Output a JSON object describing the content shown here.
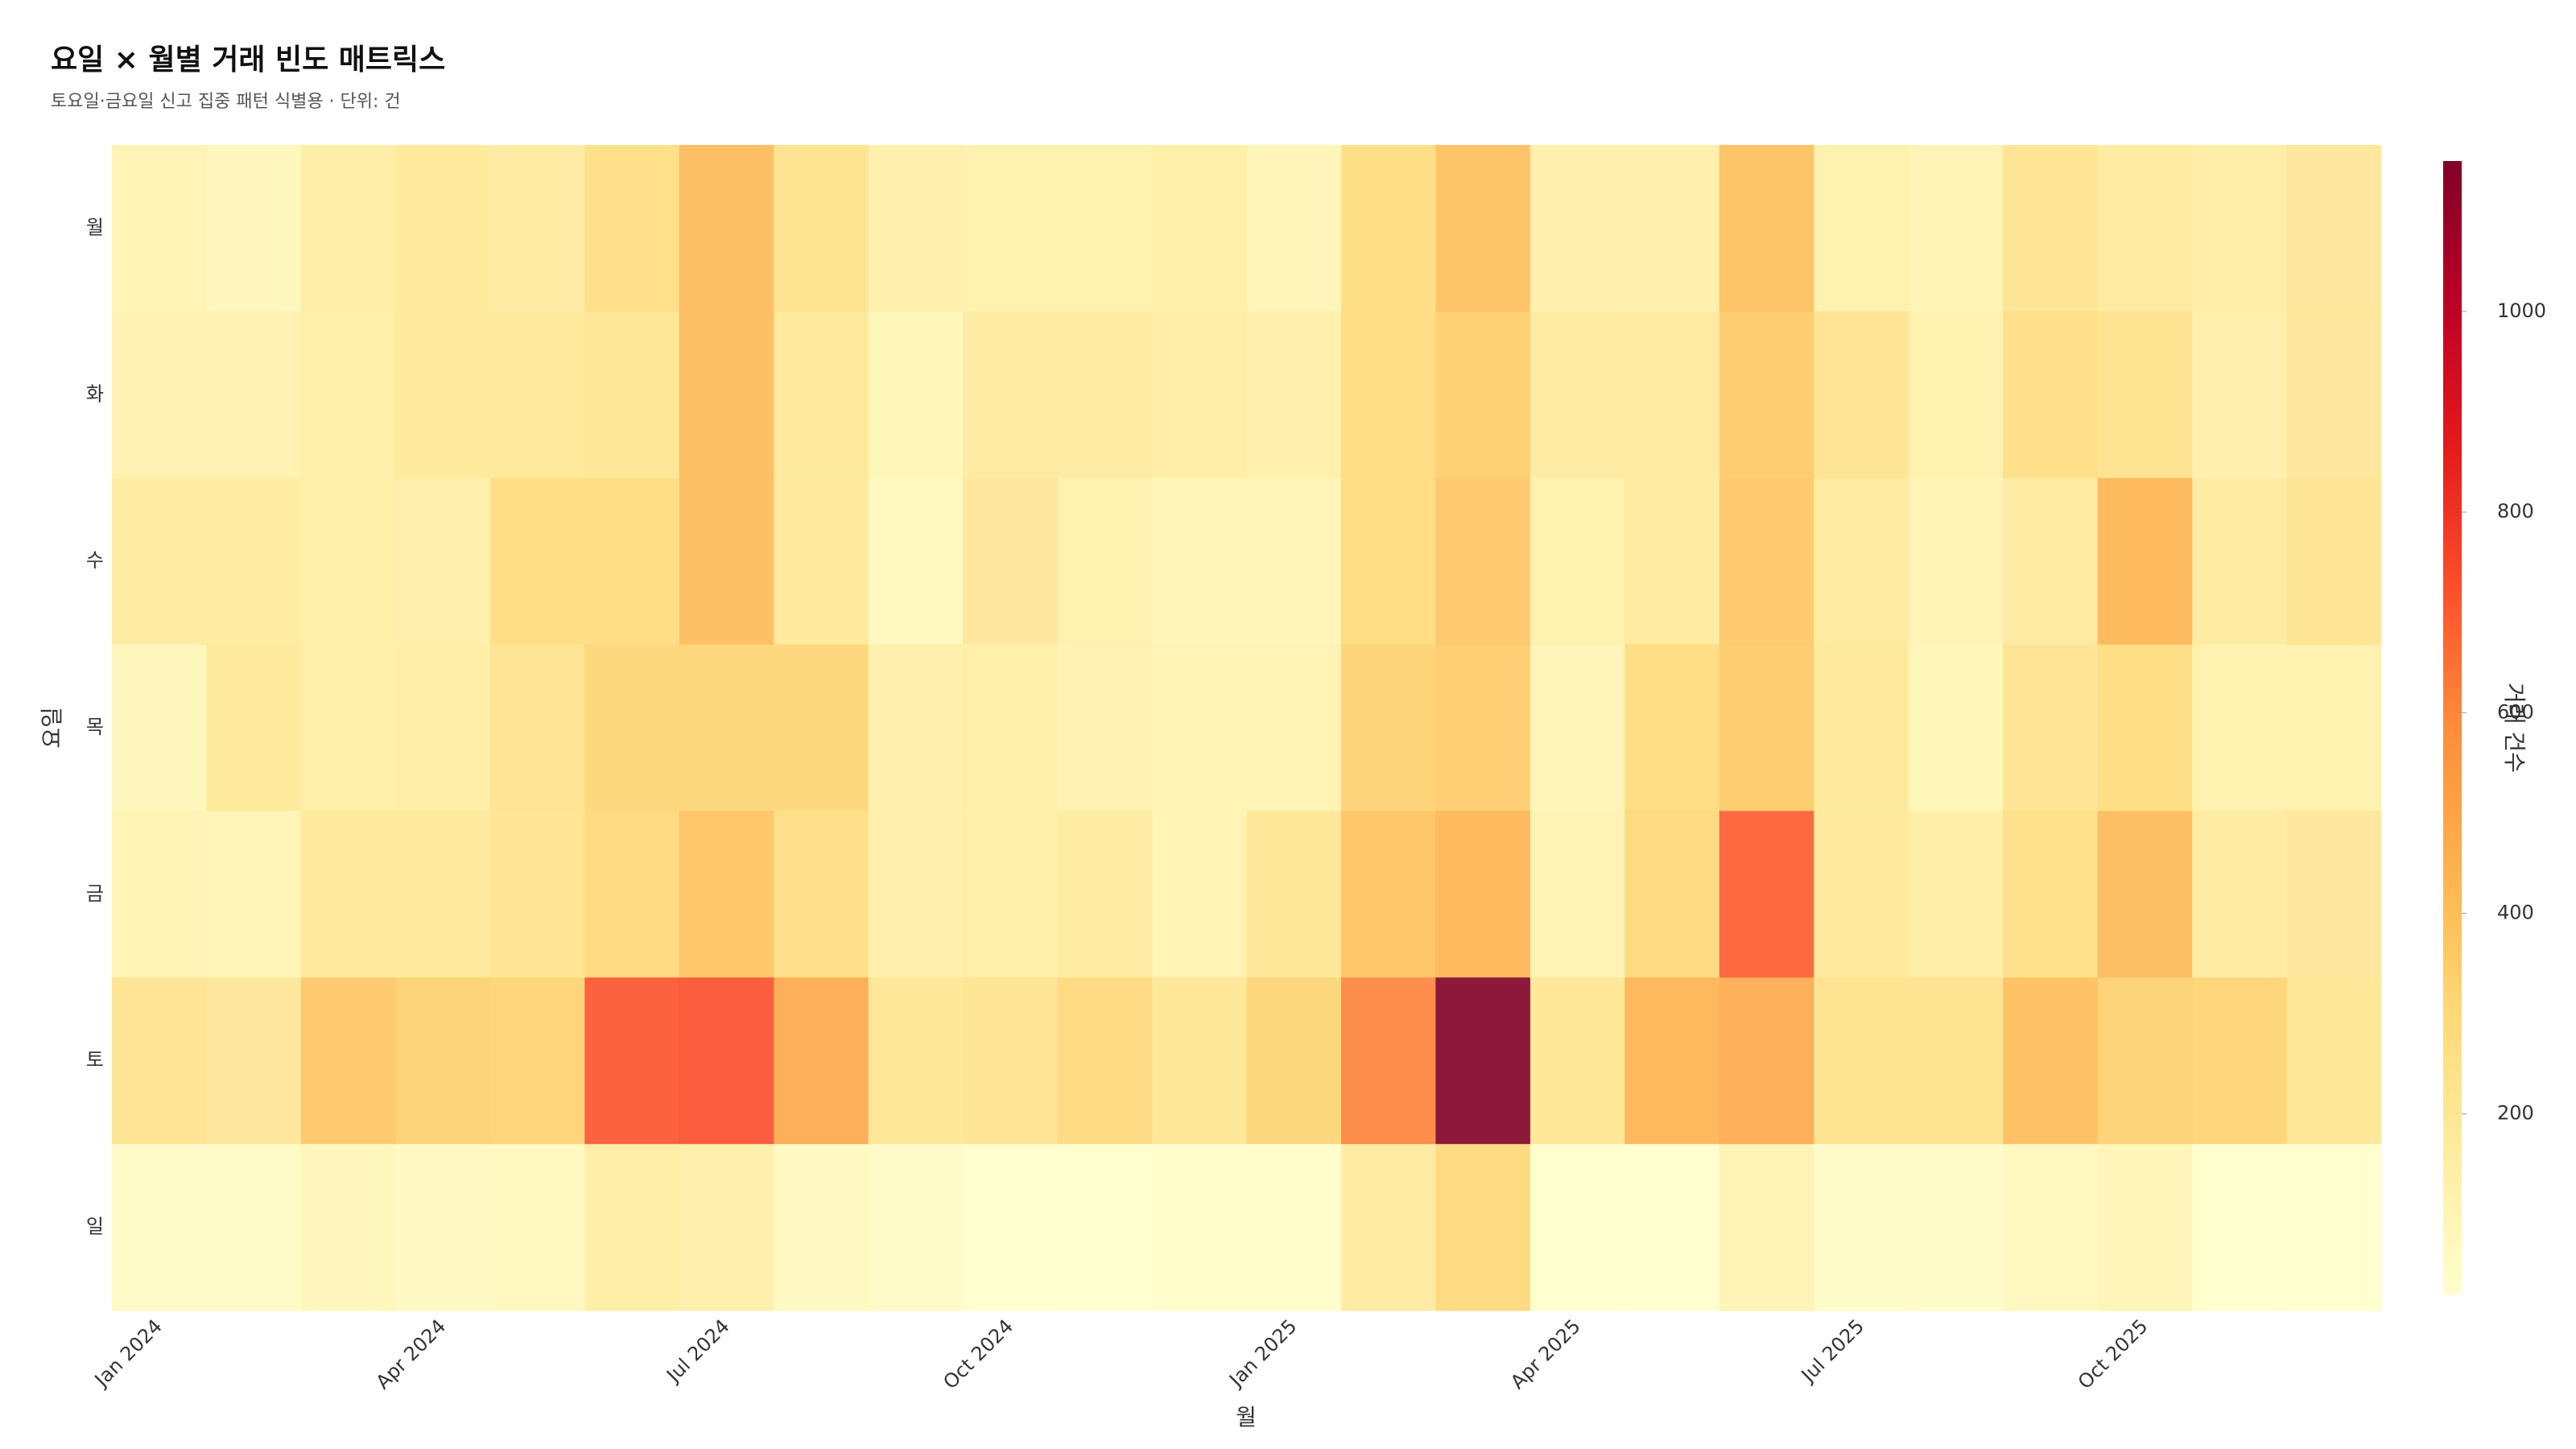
{
  "chart_data": {
    "type": "heatmap",
    "title": "요일 × 월별 거래 빈도 매트릭스",
    "subtitle": "토요일·금요일 신고 집중 패턴 식별용 · 단위: 건",
    "x_label": "월",
    "y_label": "요일",
    "colorbar_title": "거래 건수",
    "x": [
      "Jan 2024",
      null,
      null,
      "Apr 2024",
      null,
      null,
      "Jul 2024",
      null,
      null,
      "Oct 2024",
      null,
      null,
      "Jan 2025",
      null,
      null,
      "Apr 2025",
      null,
      null,
      "Jul 2025",
      null,
      null,
      "Oct 2025",
      null,
      null
    ],
    "y": [
      "월",
      "화",
      "수",
      "목",
      "금",
      "토",
      "일"
    ],
    "z": [
      [
        120,
        90,
        170,
        200,
        180,
        280,
        420,
        250,
        150,
        140,
        140,
        160,
        110,
        290,
        400,
        150,
        150,
        400,
        140,
        120,
        230,
        190,
        170,
        210
      ],
      [
        130,
        130,
        160,
        200,
        200,
        220,
        420,
        200,
        100,
        180,
        180,
        170,
        150,
        300,
        350,
        180,
        190,
        370,
        240,
        140,
        280,
        250,
        150,
        210
      ],
      [
        180,
        180,
        160,
        150,
        290,
        290,
        420,
        200,
        80,
        210,
        140,
        110,
        110,
        300,
        380,
        140,
        190,
        380,
        190,
        120,
        180,
        440,
        180,
        230
      ],
      [
        90,
        200,
        160,
        170,
        240,
        320,
        320,
        320,
        150,
        160,
        130,
        120,
        120,
        340,
        360,
        110,
        300,
        370,
        200,
        100,
        240,
        290,
        140,
        140
      ],
      [
        120,
        110,
        200,
        200,
        230,
        310,
        390,
        280,
        150,
        160,
        180,
        120,
        220,
        390,
        440,
        120,
        310,
        700,
        200,
        170,
        270,
        420,
        180,
        210
      ],
      [
        230,
        210,
        380,
        340,
        330,
        720,
        730,
        490,
        220,
        230,
        310,
        220,
        320,
        610,
        1150,
        220,
        450,
        480,
        250,
        250,
        410,
        340,
        330,
        220
      ],
      [
        50,
        50,
        90,
        70,
        80,
        170,
        150,
        70,
        50,
        30,
        25,
        35,
        35,
        180,
        310,
        25,
        25,
        120,
        40,
        40,
        80,
        110,
        30,
        30
      ]
    ],
    "zlim": [
      20,
      1150
    ],
    "zticks": [
      200,
      400,
      600,
      800,
      1000
    ],
    "colorscale": [
      "#ffffcc",
      "#ffeda0",
      "#fed976",
      "#feb24c",
      "#fd8d3c",
      "#fc4e2a",
      "#e31a1c",
      "#bd0026",
      "#800026"
    ]
  }
}
